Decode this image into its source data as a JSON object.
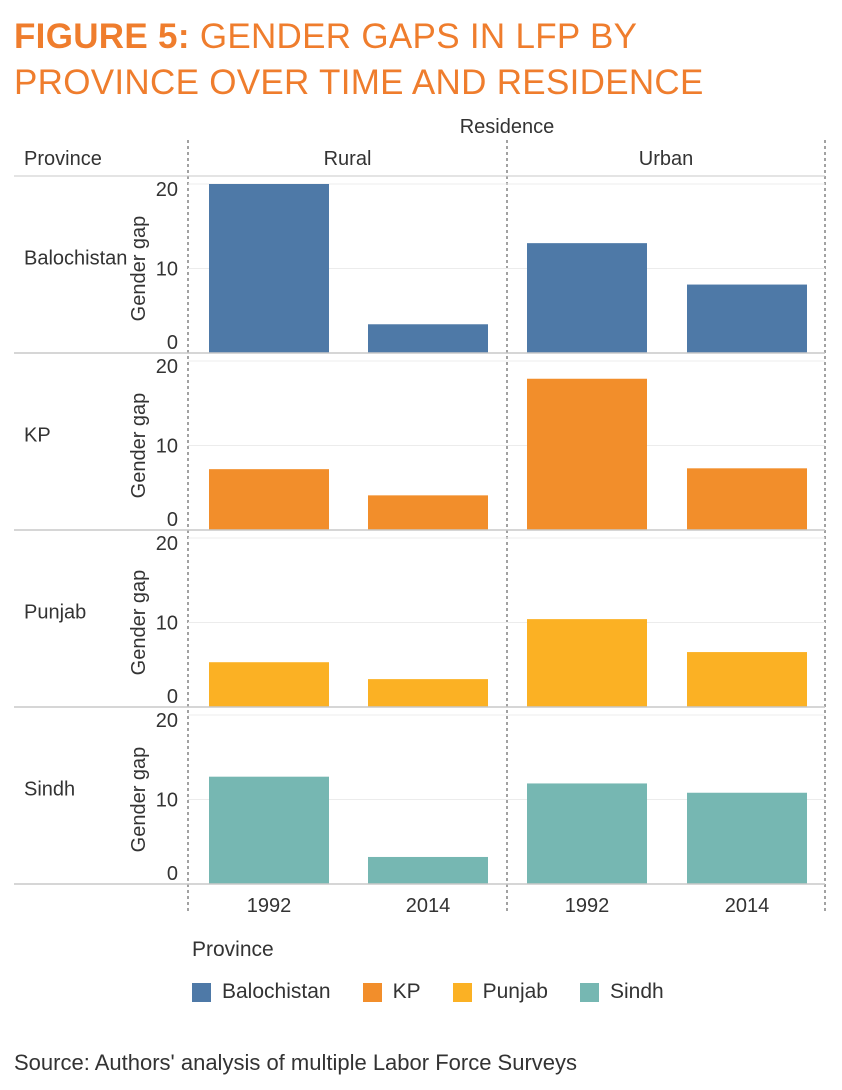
{
  "title": {
    "bold": "FIGURE 5:",
    "text": "GENDER GAPS IN LFP BY PROVINCE OVER TIME AND RESIDENCE"
  },
  "chart_data": {
    "type": "bar",
    "column_header": "Residence",
    "row_header": "Province",
    "ylabel": "Gender gap",
    "ylim": [
      0,
      20
    ],
    "yticks": [
      0,
      10,
      20
    ],
    "columns": [
      "Rural",
      "Urban"
    ],
    "categories": [
      "1992",
      "2014"
    ],
    "grid": true,
    "legend_position": "bottom-left",
    "series": [
      {
        "name": "Balochistan",
        "color": "#4e79a7",
        "values": {
          "Rural": [
            20.0,
            3.4
          ],
          "Urban": [
            13.0,
            8.1
          ]
        }
      },
      {
        "name": "KP",
        "color": "#f28e2b",
        "values": {
          "Rural": [
            7.2,
            4.1
          ],
          "Urban": [
            17.9,
            7.3
          ]
        }
      },
      {
        "name": "Punjab",
        "color": "#fbb124",
        "values": {
          "Rural": [
            5.3,
            3.3
          ],
          "Urban": [
            10.4,
            6.5
          ]
        }
      },
      {
        "name": "Sindh",
        "color": "#76b7b2",
        "values": {
          "Rural": [
            12.7,
            3.2
          ],
          "Urban": [
            11.9,
            10.8
          ]
        }
      }
    ]
  },
  "legend": {
    "title": "Province"
  },
  "source": "Source: Authors' analysis of multiple Labor Force Surveys"
}
